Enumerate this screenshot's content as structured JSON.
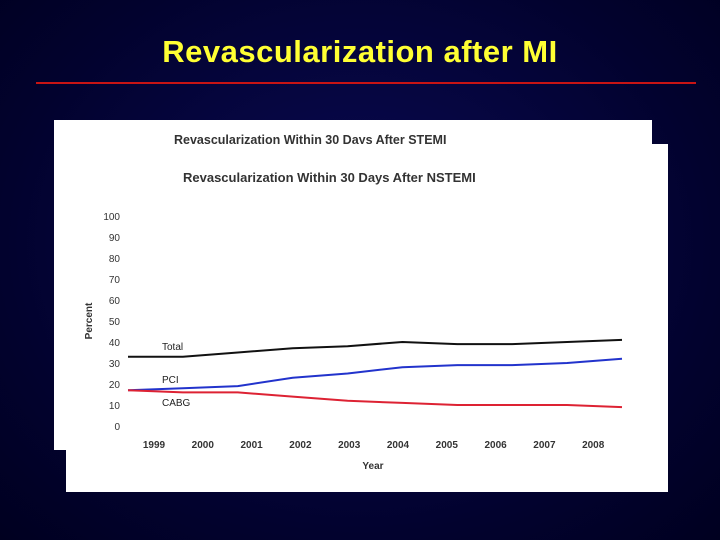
{
  "slide": {
    "title": "Revascularization after MI"
  },
  "back_chart": {
    "title": "Revascularization Within 30 Days After STEMI"
  },
  "chart_data": {
    "type": "line",
    "title": "Revascularization Within 30 Days After NSTEMI",
    "xlabel": "Year",
    "ylabel": "Percent",
    "ylim": [
      0,
      100
    ],
    "yticks": [
      "0",
      "10",
      "20",
      "30",
      "40",
      "50",
      "60",
      "70",
      "80",
      "90",
      "100"
    ],
    "categories": [
      "1999",
      "2000",
      "2001",
      "2002",
      "2003",
      "2004",
      "2005",
      "2006",
      "2007",
      "2008"
    ],
    "series": [
      {
        "name": "Total",
        "color": "#111111",
        "values": [
          33,
          33,
          35,
          37,
          38,
          40,
          39,
          39,
          40,
          41
        ]
      },
      {
        "name": "PCI",
        "color": "#2233cc",
        "values": [
          17,
          18,
          19,
          23,
          25,
          28,
          29,
          29,
          30,
          32
        ]
      },
      {
        "name": "CABG",
        "color": "#dd2233",
        "values": [
          17,
          16,
          16,
          14,
          12,
          11,
          10,
          10,
          10,
          9
        ]
      }
    ]
  }
}
